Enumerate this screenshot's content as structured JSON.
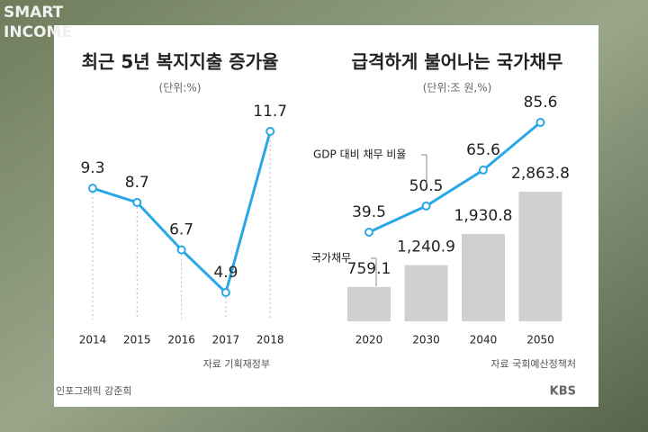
{
  "brand": [
    "SMART",
    "INCOME"
  ],
  "credit": "인포그래픽 강준희",
  "publisher": "KBS",
  "chart_data": [
    {
      "type": "line",
      "title": "최근 5년 복지지출 증가율",
      "subtitle": "(단위:%)",
      "categories": [
        "2014",
        "2015",
        "2016",
        "2017",
        "2018"
      ],
      "values": [
        9.3,
        8.7,
        6.7,
        4.9,
        11.7
      ],
      "color": "#2aa7e6",
      "source": "자료 기획재정부"
    },
    {
      "type": "combo",
      "title": "급격하게 불어나는 국가채무",
      "subtitle": "(단위:조 원,%)",
      "categories": [
        "2020",
        "2030",
        "2040",
        "2050"
      ],
      "series": [
        {
          "name": "국가채무",
          "type": "bar",
          "color": "#d0d0d0",
          "values": [
            759.1,
            1240.9,
            1930.8,
            2863.8
          ],
          "value_labels": [
            "759.1",
            "1,240.9",
            "1,930.8",
            "2,863.8"
          ]
        },
        {
          "name": "GDP 대비 채무 비율",
          "type": "line",
          "axis": "y2",
          "color": "#2aa7e6",
          "values": [
            39.5,
            50.5,
            65.6,
            85.6
          ]
        }
      ],
      "source": "자료 국회예산정책처"
    }
  ]
}
